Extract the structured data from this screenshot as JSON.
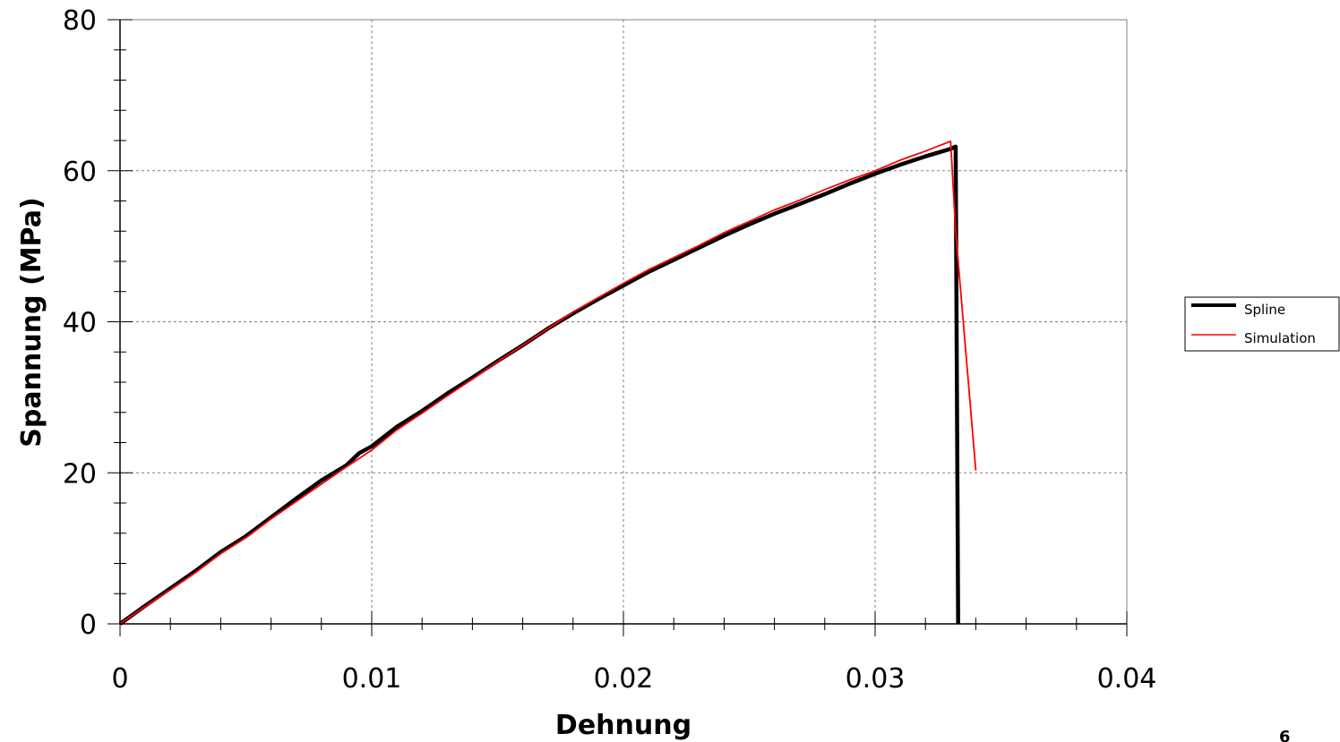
{
  "page_number": "6",
  "chart_data": {
    "type": "line",
    "title": "",
    "xlabel": "Dehnung",
    "ylabel": "Spannung (MPa)",
    "xlim": [
      0,
      0.04
    ],
    "ylim": [
      0,
      80
    ],
    "x_ticks": [
      0,
      0.01,
      0.02,
      0.03,
      0.04
    ],
    "x_tick_labels": [
      "0",
      "0.01",
      "0.02",
      "0.03",
      "0.04"
    ],
    "y_ticks": [
      0,
      20,
      40,
      60,
      80
    ],
    "y_tick_labels": [
      "0",
      "20",
      "40",
      "60",
      "80"
    ],
    "grid": true,
    "legend_position": "right",
    "series": [
      {
        "name": "Spline",
        "color": "#000000",
        "points": [
          [
            0,
            0
          ],
          [
            0.001,
            2.4
          ],
          [
            0.002,
            4.7
          ],
          [
            0.003,
            7.0
          ],
          [
            0.004,
            9.5
          ],
          [
            0.005,
            11.6
          ],
          [
            0.006,
            14.1
          ],
          [
            0.007,
            16.6
          ],
          [
            0.008,
            19.0
          ],
          [
            0.009,
            21.0
          ],
          [
            0.0095,
            22.6
          ],
          [
            0.01,
            23.5
          ],
          [
            0.011,
            26.1
          ],
          [
            0.012,
            28.2
          ],
          [
            0.013,
            30.5
          ],
          [
            0.014,
            32.6
          ],
          [
            0.015,
            34.8
          ],
          [
            0.016,
            36.9
          ],
          [
            0.017,
            39.1
          ],
          [
            0.018,
            41.1
          ],
          [
            0.019,
            43.0
          ],
          [
            0.02,
            44.8
          ],
          [
            0.021,
            46.6
          ],
          [
            0.022,
            48.2
          ],
          [
            0.023,
            49.8
          ],
          [
            0.024,
            51.4
          ],
          [
            0.025,
            52.9
          ],
          [
            0.026,
            54.3
          ],
          [
            0.027,
            55.6
          ],
          [
            0.028,
            56.9
          ],
          [
            0.029,
            58.3
          ],
          [
            0.03,
            59.6
          ],
          [
            0.031,
            60.8
          ],
          [
            0.032,
            61.9
          ],
          [
            0.033,
            62.9
          ],
          [
            0.0332,
            63.2
          ],
          [
            0.0333,
            0
          ]
        ]
      },
      {
        "name": "Simulation",
        "color": "#ff0000",
        "points": [
          [
            0,
            0
          ],
          [
            0.001,
            2.3
          ],
          [
            0.002,
            4.5
          ],
          [
            0.003,
            6.8
          ],
          [
            0.004,
            9.3
          ],
          [
            0.005,
            11.4
          ],
          [
            0.006,
            13.9
          ],
          [
            0.007,
            16.2
          ],
          [
            0.008,
            18.5
          ],
          [
            0.009,
            20.8
          ],
          [
            0.01,
            23.0
          ],
          [
            0.011,
            25.7
          ],
          [
            0.012,
            27.9
          ],
          [
            0.013,
            30.2
          ],
          [
            0.014,
            32.4
          ],
          [
            0.015,
            34.7
          ],
          [
            0.016,
            36.9
          ],
          [
            0.017,
            39.1
          ],
          [
            0.018,
            41.3
          ],
          [
            0.019,
            43.2
          ],
          [
            0.02,
            45.1
          ],
          [
            0.021,
            46.9
          ],
          [
            0.022,
            48.5
          ],
          [
            0.023,
            50.1
          ],
          [
            0.024,
            51.8
          ],
          [
            0.025,
            53.3
          ],
          [
            0.026,
            54.8
          ],
          [
            0.027,
            56.1
          ],
          [
            0.028,
            57.5
          ],
          [
            0.029,
            58.8
          ],
          [
            0.03,
            60.0
          ],
          [
            0.031,
            61.4
          ],
          [
            0.032,
            62.6
          ],
          [
            0.033,
            63.9
          ],
          [
            0.0332,
            52.0
          ],
          [
            0.034,
            20.3
          ]
        ]
      }
    ]
  }
}
